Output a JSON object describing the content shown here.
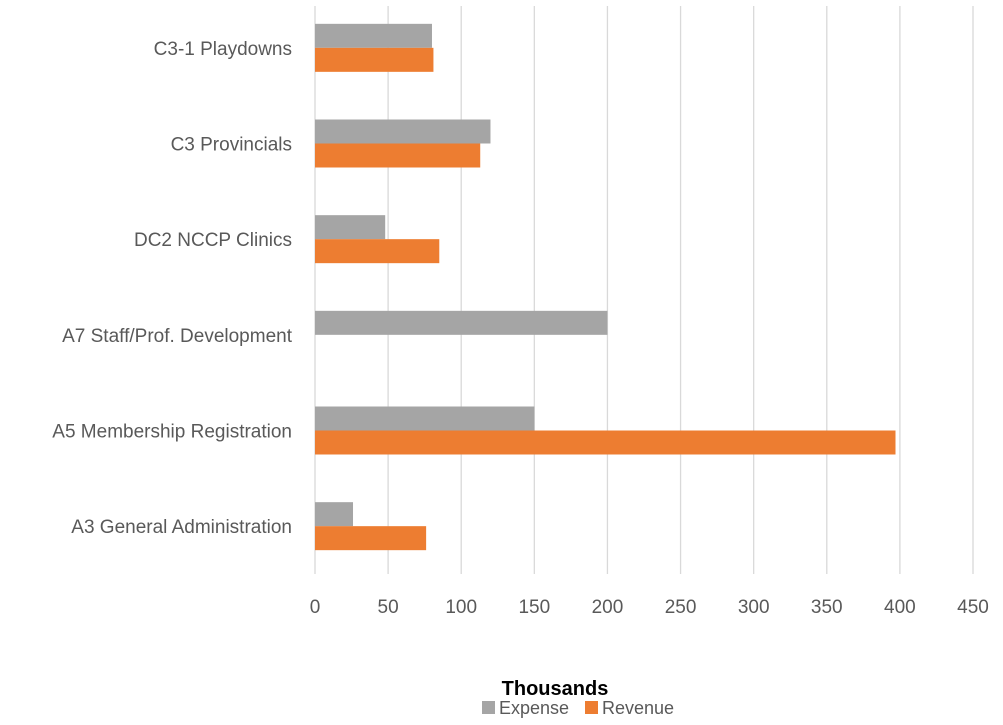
{
  "chart_data": {
    "type": "bar",
    "orientation": "horizontal",
    "categories": [
      "C3-1 Playdowns",
      "C3 Provincials",
      "DC2 NCCP Clinics",
      "A7 Staff/Prof. Development",
      "A5 Membership Registration",
      "A3 General Administration"
    ],
    "series": [
      {
        "name": "Expense",
        "color": "#a5a5a5",
        "values": [
          80,
          120,
          48,
          200,
          150,
          26
        ]
      },
      {
        "name": "Revenue",
        "color": "#ed7d31",
        "values": [
          81,
          113,
          85,
          0,
          397,
          76
        ]
      }
    ],
    "xticks": [
      "0",
      "50",
      "100",
      "150",
      "200",
      "250",
      "300",
      "350",
      "400",
      "450"
    ],
    "xlim": [
      0,
      450
    ],
    "xlabel": "Thousands",
    "ylabel": "",
    "title": "",
    "grid": "vertical",
    "legend": "bottom"
  }
}
